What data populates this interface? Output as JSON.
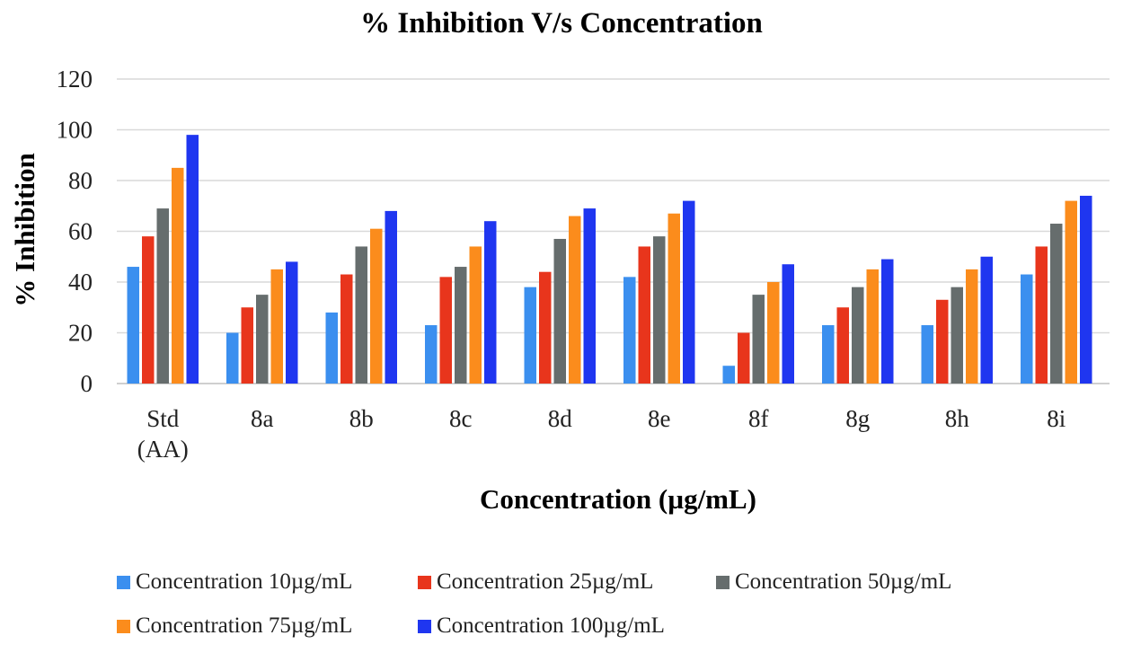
{
  "chart_data": {
    "type": "bar",
    "title": "% Inhibition V/s Concentration",
    "xlabel": "Concentration (µg/mL)",
    "ylabel": "% Inhibition",
    "ylim": [
      0,
      120
    ],
    "yticks": [
      0,
      20,
      40,
      60,
      80,
      100,
      120
    ],
    "grid": true,
    "legend_position": "bottom",
    "categories": [
      [
        "Std",
        "(AA)"
      ],
      [
        "8a"
      ],
      [
        "8b"
      ],
      [
        "8c"
      ],
      [
        "8d"
      ],
      [
        "8e"
      ],
      [
        "8f"
      ],
      [
        "8g"
      ],
      [
        "8h"
      ],
      [
        "8i"
      ]
    ],
    "series": [
      {
        "name": "Concentration 10µg/mL",
        "color": "#3b8fef",
        "values": [
          46,
          20,
          28,
          23,
          38,
          42,
          7,
          23,
          23,
          43
        ]
      },
      {
        "name": "Concentration 25µg/mL",
        "color": "#e8351c",
        "values": [
          58,
          30,
          43,
          42,
          44,
          54,
          20,
          30,
          33,
          54
        ]
      },
      {
        "name": "Concentration 50µg/mL",
        "color": "#666d6d",
        "values": [
          69,
          35,
          54,
          46,
          57,
          58,
          35,
          38,
          38,
          63
        ]
      },
      {
        "name": "Concentration 75µg/mL",
        "color": "#fb8c1c",
        "values": [
          85,
          45,
          61,
          54,
          66,
          67,
          40,
          45,
          45,
          72
        ]
      },
      {
        "name": "Concentration 100µg/mL",
        "color": "#1f36f0",
        "values": [
          98,
          48,
          68,
          64,
          69,
          72,
          47,
          49,
          50,
          74
        ]
      }
    ]
  }
}
